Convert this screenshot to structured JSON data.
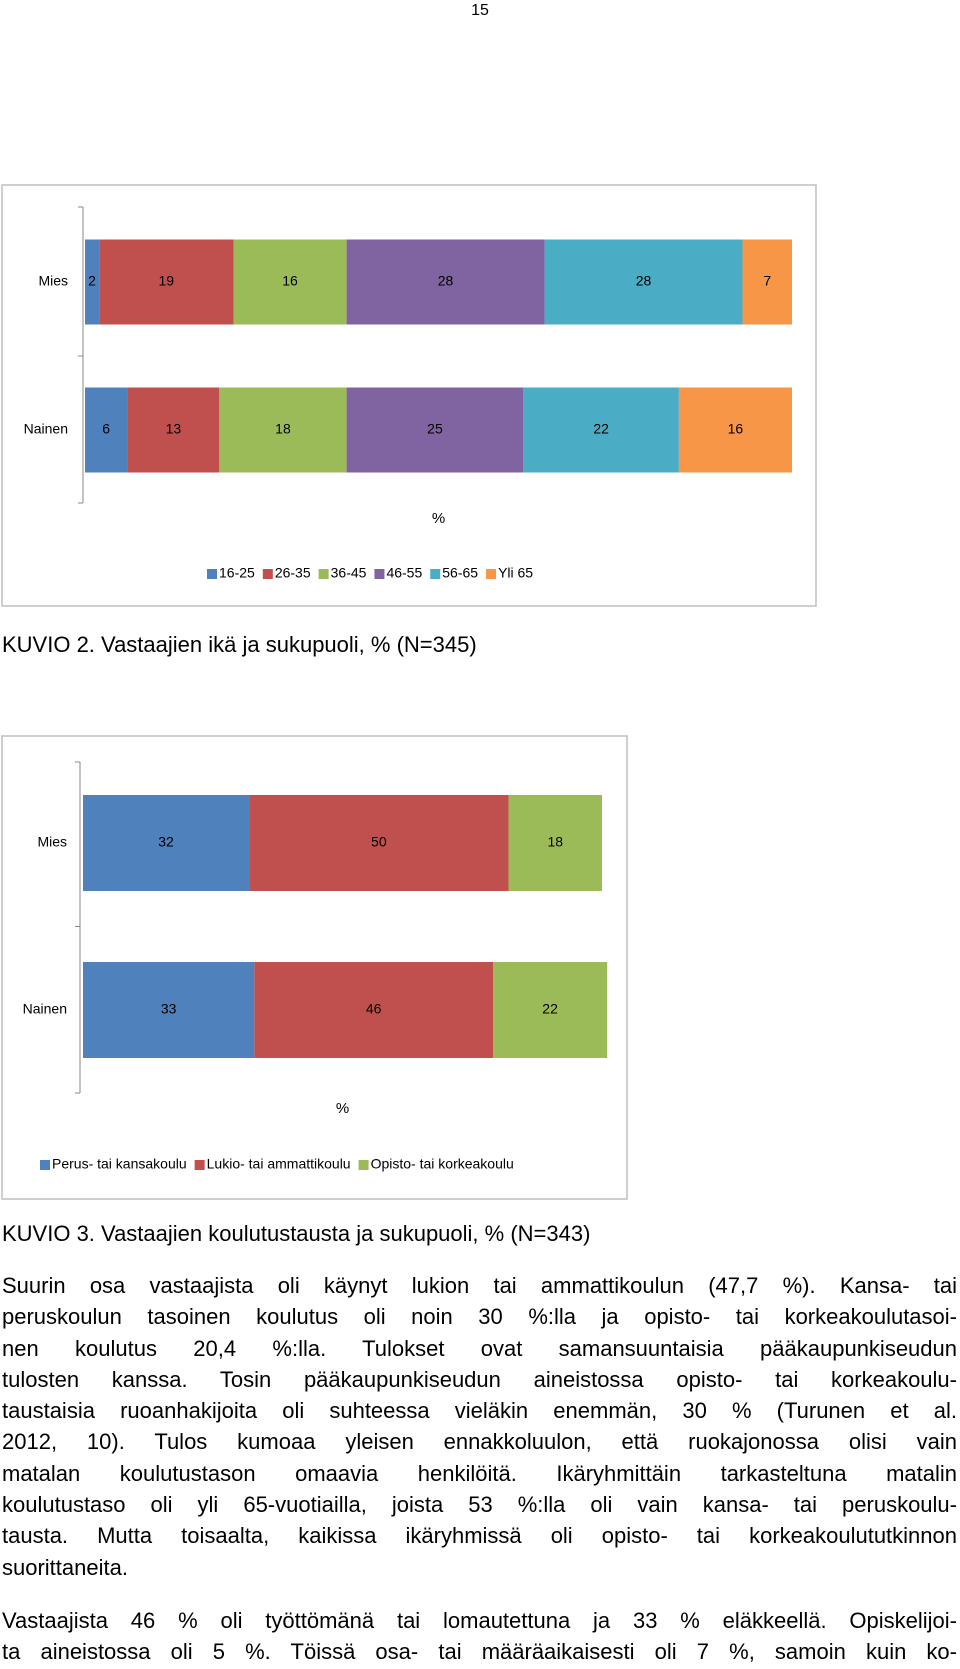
{
  "page_number": "15",
  "chart_data": [
    {
      "type": "bar",
      "orientation": "horizontal",
      "stacked": true,
      "categories": [
        "Mies",
        "Nainen"
      ],
      "series": [
        {
          "name": "16-25",
          "color": "#4f81bd",
          "values": [
            2,
            6
          ]
        },
        {
          "name": "26-35",
          "color": "#c0504d",
          "values": [
            19,
            13
          ]
        },
        {
          "name": "36-45",
          "color": "#9bbb59",
          "values": [
            16,
            18
          ]
        },
        {
          "name": "46-55",
          "color": "#8064a2",
          "values": [
            28,
            25
          ]
        },
        {
          "name": "56-65",
          "color": "#4bacc6",
          "values": [
            28,
            22
          ]
        },
        {
          "name": "Yli 65",
          "color": "#f79646",
          "values": [
            7,
            16
          ]
        }
      ],
      "xlabel": "%",
      "xlim": [
        0,
        100
      ],
      "legend": "bottom"
    },
    {
      "type": "bar",
      "orientation": "horizontal",
      "stacked": true,
      "categories": [
        "Mies",
        "Nainen"
      ],
      "series": [
        {
          "name": "Perus- tai kansakoulu",
          "color": "#4f81bd",
          "values": [
            32,
            33
          ]
        },
        {
          "name": "Lukio- tai ammattikoulu",
          "color": "#c0504d",
          "values": [
            50,
            46
          ]
        },
        {
          "name": "Opisto- tai korkeakoulu",
          "color": "#9bbb59",
          "values": [
            18,
            22
          ]
        }
      ],
      "xlabel": "%",
      "xlim": [
        0,
        100
      ],
      "legend": "bottom"
    }
  ],
  "captions": [
    "KUVIO 2. Vastaajien ikä ja sukupuoli, % (N=345)",
    "KUVIO 3. Vastaajien koulutustausta ja sukupuoli, % (N=343)"
  ],
  "paragraphs": [
    [
      "Suurin osa vastaajista oli käynyt lukion tai ammattikoulun (47,7 %). Kansa- tai",
      "peruskoulun tasoinen koulutus oli noin 30 %:lla ja opisto- tai korkeakoulutasoi-",
      "nen koulutus 20,4 %:lla. Tulokset ovat samansuuntaisia pääkaupunkiseudun",
      "tulosten kanssa. Tosin pääkaupunkiseudun aineistossa opisto- tai korkeakoulu-",
      "taustaisia ruoanhakijoita oli suhteessa vieläkin enemmän, 30 % (Turunen et al.",
      "2012, 10).  Tulos kumoaa yleisen ennakkoluulon, että ruokajonossa olisi vain",
      "matalan koulutustason omaavia henkilöitä. Ikäryhmittäin tarkasteltuna matalin",
      "koulutustaso oli yli 65-vuotiailla, joista 53 %:lla oli vain kansa- tai peruskoulu-",
      "tausta. Mutta toisaalta, kaikissa ikäryhmissä oli opisto- tai korkeakoulututkinnon",
      "suorittaneita."
    ],
    [
      "Vastaajista 46 % oli työttömänä tai lomautettuna ja 33 % eläkkeellä. Opiskelijoi-",
      "ta aineistossa oli 5 %. Töissä osa- tai määräaikaisesti oli 7 %, samoin kuin ko-"
    ]
  ]
}
